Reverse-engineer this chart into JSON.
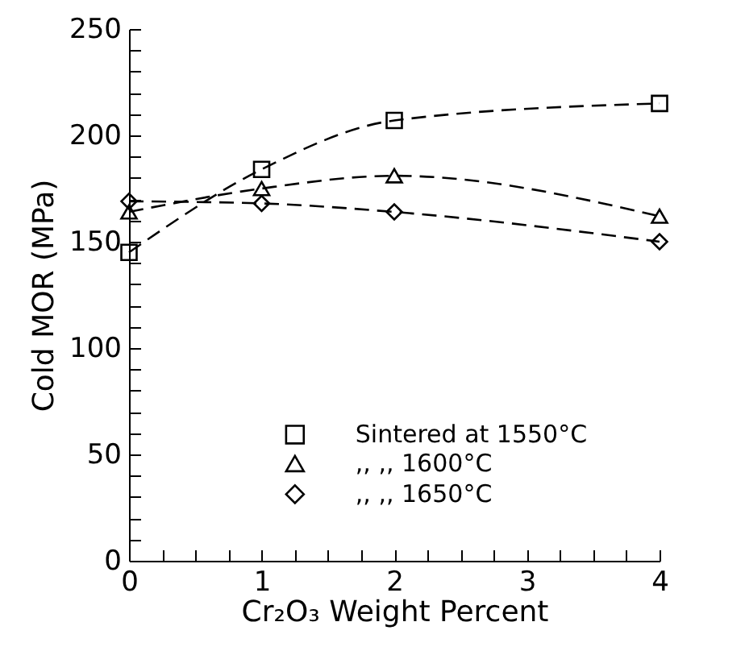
{
  "chart_data": {
    "type": "line",
    "xlabel": "Cr₂O₃ Weight Percent",
    "ylabel": "Cold MOR (MPa)",
    "x": [
      0,
      1,
      2,
      4
    ],
    "series": [
      {
        "name": "Sintered at 1550°C",
        "color": "#000000",
        "marker": "square",
        "values": [
          145,
          184,
          207,
          215
        ]
      },
      {
        "name": ",, ,, 1600°C",
        "color": "#000000",
        "marker": "triangle",
        "values": [
          164,
          175,
          181,
          162
        ]
      },
      {
        "name": ",, ,, 1650°C",
        "color": "#000000",
        "marker": "diamond",
        "values": [
          169,
          168,
          164,
          150
        ]
      }
    ],
    "xlim": [
      0,
      4
    ],
    "xticks": [
      0,
      {
        "value": 0.25,
        "label": null
      },
      {
        "value": 0.5,
        "label": null
      },
      {
        "value": 0.75,
        "label": null
      },
      1,
      {
        "value": 1.25,
        "label": null
      },
      {
        "value": 1.5,
        "label": null
      },
      {
        "value": 1.75,
        "label": null
      },
      2,
      {
        "value": 2.25,
        "label": null
      },
      {
        "value": 2.5,
        "label": null
      },
      {
        "value": 2.75,
        "label": null
      },
      3,
      {
        "value": 3.25,
        "label": null
      },
      {
        "value": 3.5,
        "label": null
      },
      {
        "value": 3.75,
        "label": null
      },
      4
    ],
    "ylim": [
      0,
      250
    ],
    "yticks": [
      0,
      {
        "value": 10,
        "label": null
      },
      {
        "value": 20,
        "label": null
      },
      {
        "value": 30,
        "label": null
      },
      {
        "value": 40,
        "label": null
      },
      50,
      {
        "value": 60,
        "label": null
      },
      {
        "value": 70,
        "label": null
      },
      {
        "value": 80,
        "label": null
      },
      {
        "value": 90,
        "label": null
      },
      100,
      {
        "value": 110,
        "label": null
      },
      {
        "value": 120,
        "label": null
      },
      {
        "value": 130,
        "label": null
      },
      {
        "value": 140,
        "label": null
      },
      150,
      {
        "value": 160,
        "label": null
      },
      {
        "value": 170,
        "label": null
      },
      {
        "value": 180,
        "label": null
      },
      {
        "value": 190,
        "label": null
      },
      200,
      {
        "value": 210,
        "label": null
      },
      {
        "value": 220,
        "label": null
      },
      {
        "value": 230,
        "label": null
      },
      {
        "value": 240,
        "label": null
      },
      250
    ],
    "grid": false,
    "legend": "bottom right",
    "line_style": "dashed"
  }
}
